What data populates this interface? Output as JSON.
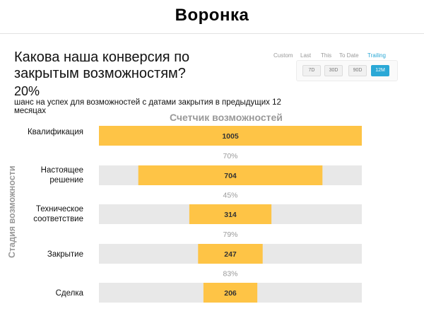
{
  "page": {
    "title": "Воронка"
  },
  "header": {
    "question": "Какова наша конверсия по закрытым возможностям?",
    "metric_value": "20%",
    "metric_description": "шанс на успех для возможностей с датами закрытия в предыдущих 12 месяцах"
  },
  "time_range": {
    "labels": [
      "Custom",
      "Last",
      "This",
      "To Date",
      "Trailing"
    ],
    "active_label": "Trailing",
    "options": [
      "7D",
      "30D",
      "90D",
      "12M"
    ],
    "selected": "12M",
    "accent_color": "#2aa8d6"
  },
  "chart_data": {
    "type": "bar",
    "orientation": "horizontal",
    "style": "funnel-centered",
    "xlabel": "Счетчик возможностей",
    "ylabel": "Стадия возможности",
    "categories": [
      "Квалификация",
      "Настоящее решение",
      "Техническое соответствие",
      "Закрытие",
      "Сделка"
    ],
    "values": [
      1005,
      704,
      314,
      247,
      206
    ],
    "conversion_labels": [
      "70%",
      "45%",
      "79%",
      "83%"
    ],
    "xlim": [
      0,
      1005
    ],
    "bar_color": "#fec446",
    "track_color": "#e8e8e8"
  }
}
